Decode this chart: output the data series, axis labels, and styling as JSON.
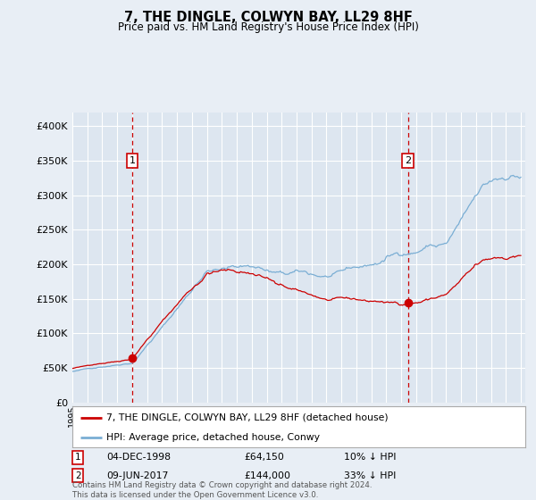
{
  "title": "7, THE DINGLE, COLWYN BAY, LL29 8HF",
  "subtitle": "Price paid vs. HM Land Registry's House Price Index (HPI)",
  "background_color": "#e8eef5",
  "plot_bg_color": "#dde6f0",
  "ylim": [
    0,
    420000
  ],
  "yticks": [
    0,
    50000,
    100000,
    150000,
    200000,
    250000,
    300000,
    350000,
    400000
  ],
  "sale1_date": "04-DEC-1998",
  "sale1_price": 64150,
  "sale1_label_price": "£64,150",
  "sale1_hpi_pct": "10% ↓ HPI",
  "sale2_date": "09-JUN-2017",
  "sale2_price": 144000,
  "sale2_label_price": "£144,000",
  "sale2_hpi_pct": "33% ↓ HPI",
  "legend_line1": "7, THE DINGLE, COLWYN BAY, LL29 8HF (detached house)",
  "legend_line2": "HPI: Average price, detached house, Conwy",
  "footer": "Contains HM Land Registry data © Crown copyright and database right 2024.\nThis data is licensed under the Open Government Licence v3.0.",
  "hpi_color": "#7aaed4",
  "price_color": "#cc0000",
  "dashed_line_color": "#cc0000",
  "sale1_x": 1999.0,
  "sale2_x": 2017.45,
  "xmin": 1995,
  "xmax": 2025.3
}
